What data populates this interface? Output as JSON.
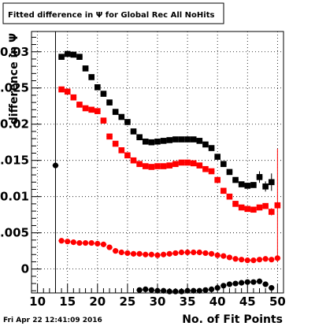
{
  "chart_data": {
    "type": "scatter",
    "title": "Fitted difference in Ψ  for Global Rec All NoHits",
    "xlabel": "No. of Fit Points",
    "ylabel": "difference in Ψ",
    "timestamp": "Fri Apr 22 12:41:09 2016",
    "xlim": [
      9,
      51
    ],
    "ylim": [
      -0.0033,
      0.0328
    ],
    "grid": true,
    "x_ticks": [
      10,
      15,
      20,
      25,
      30,
      35,
      40,
      45,
      50
    ],
    "x_tick_labels": [
      "10",
      "15",
      "20",
      "25",
      "30",
      "35",
      "40",
      "45",
      "50"
    ],
    "y_ticks": [
      0,
      0.005,
      0.01,
      0.015,
      0.02,
      0.025,
      0.03
    ],
    "y_tick_labels": [
      "0",
      "0.005",
      "0.01",
      "0.015",
      "0.02",
      "0.025",
      "0.03"
    ],
    "series": [
      {
        "marker": "square",
        "color": "#000000",
        "x": [
          14,
          15,
          16,
          17,
          18,
          19,
          20,
          21,
          22,
          23,
          24,
          25,
          26,
          27,
          28,
          29,
          30,
          31,
          32,
          33,
          34,
          35,
          36,
          37,
          38,
          39,
          40,
          41,
          42,
          43,
          44,
          45,
          46,
          47,
          48,
          49
        ],
        "y": [
          0.0293,
          0.0297,
          0.0296,
          0.0293,
          0.0277,
          0.0265,
          0.0251,
          0.0242,
          0.023,
          0.0217,
          0.021,
          0.0203,
          0.019,
          0.0182,
          0.0176,
          0.0175,
          0.0176,
          0.0177,
          0.0178,
          0.0179,
          0.0179,
          0.0179,
          0.0179,
          0.0177,
          0.0172,
          0.0167,
          0.0155,
          0.0145,
          0.0134,
          0.0123,
          0.0117,
          0.0115,
          0.0116,
          0.0127,
          0.0114,
          0.012
        ],
        "err": [
          0,
          0,
          0,
          0,
          0,
          0,
          0,
          0,
          0,
          0,
          0,
          0,
          0,
          0,
          0,
          0,
          0,
          0,
          0,
          0,
          0,
          0,
          0,
          0,
          0,
          0,
          0,
          0,
          0,
          0,
          0,
          0,
          0,
          0.0008,
          0.0007,
          0.0012
        ]
      },
      {
        "marker": "square",
        "color": "#ff0000",
        "x": [
          14,
          15,
          16,
          17,
          18,
          19,
          20,
          21,
          22,
          23,
          24,
          25,
          26,
          27,
          28,
          29,
          30,
          31,
          32,
          33,
          34,
          35,
          36,
          37,
          38,
          39,
          40,
          41,
          42,
          43,
          44,
          45,
          46,
          47,
          48,
          49,
          50
        ],
        "y": [
          0.0248,
          0.0245,
          0.0237,
          0.0227,
          0.0222,
          0.022,
          0.0218,
          0.0205,
          0.0183,
          0.0173,
          0.0164,
          0.0157,
          0.015,
          0.0145,
          0.0142,
          0.0141,
          0.0142,
          0.0142,
          0.0143,
          0.0145,
          0.0147,
          0.0147,
          0.0146,
          0.0143,
          0.0138,
          0.0135,
          0.0123,
          0.0108,
          0.01,
          0.009,
          0.0085,
          0.0083,
          0.0082,
          0.0085,
          0.0087,
          0.0079,
          0.0088
        ],
        "err": [
          0,
          0,
          0,
          0,
          0,
          0,
          0,
          0,
          0,
          0,
          0,
          0,
          0,
          0,
          0,
          0,
          0,
          0,
          0,
          0,
          0,
          0,
          0,
          0,
          0,
          0,
          0,
          0,
          0,
          0,
          0,
          0,
          0,
          0,
          0,
          0.0005,
          0.0078
        ]
      },
      {
        "marker": "circle",
        "color": "#ff0000",
        "x": [
          14,
          15,
          16,
          17,
          18,
          19,
          20,
          21,
          22,
          23,
          24,
          25,
          26,
          27,
          28,
          29,
          30,
          31,
          32,
          33,
          34,
          35,
          36,
          37,
          38,
          39,
          40,
          41,
          42,
          43,
          44,
          45,
          46,
          47,
          48,
          49,
          50
        ],
        "y": [
          0.0039,
          0.0038,
          0.0037,
          0.0036,
          0.0036,
          0.0036,
          0.0035,
          0.0034,
          0.003,
          0.0025,
          0.0023,
          0.0022,
          0.0021,
          0.0021,
          0.002,
          0.002,
          0.0019,
          0.002,
          0.0021,
          0.0022,
          0.0023,
          0.0023,
          0.0023,
          0.0023,
          0.0022,
          0.0021,
          0.0019,
          0.0018,
          0.0016,
          0.0014,
          0.0013,
          0.0012,
          0.0012,
          0.0013,
          0.0014,
          0.0013,
          0.0015
        ],
        "err": [
          0,
          0,
          0,
          0,
          0,
          0,
          0,
          0,
          0,
          0,
          0,
          0,
          0,
          0,
          0,
          0,
          0,
          0,
          0,
          0,
          0,
          0,
          0,
          0,
          0,
          0,
          0,
          0,
          0,
          0,
          0,
          0,
          0,
          0,
          0,
          0,
          0
        ]
      },
      {
        "marker": "circle",
        "color": "#000000",
        "x": [
          13,
          27,
          28,
          29,
          30,
          31,
          32,
          33,
          34,
          35,
          36,
          37,
          38,
          39,
          40,
          41,
          42,
          43,
          44,
          45,
          46,
          47,
          48,
          49
        ],
        "y": [
          0.0143,
          -0.0029,
          -0.0028,
          -0.0029,
          -0.003,
          -0.003,
          -0.0031,
          -0.0031,
          -0.0031,
          -0.003,
          -0.003,
          -0.003,
          -0.0029,
          -0.0028,
          -0.0026,
          -0.0023,
          -0.0021,
          -0.002,
          -0.0019,
          -0.0018,
          -0.0018,
          -0.0017,
          -0.0021,
          -0.0026
        ],
        "err": [
          0.036,
          0,
          0,
          0,
          0,
          0,
          0,
          0,
          0,
          0,
          0,
          0,
          0,
          0,
          0,
          0,
          0,
          0,
          0,
          0,
          0,
          0,
          0,
          0
        ]
      }
    ]
  }
}
